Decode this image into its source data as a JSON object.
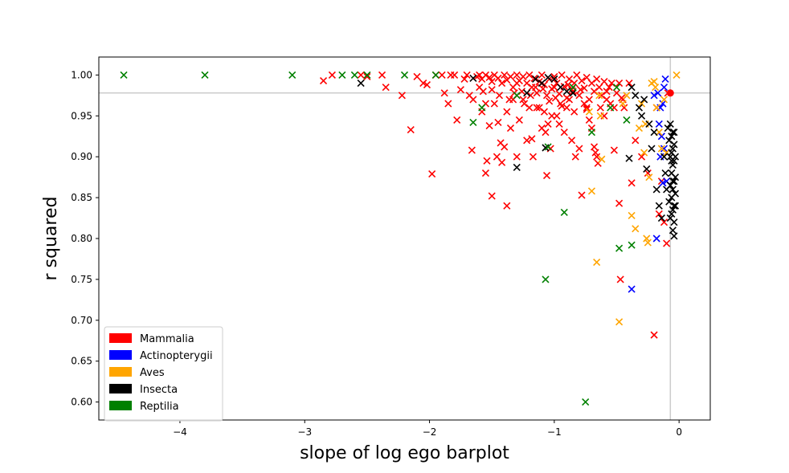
{
  "chart_data": {
    "type": "scatter",
    "xlabel": "slope of log ego barplot",
    "ylabel": "r squared",
    "xlim": [
      -4.65,
      0.25
    ],
    "ylim": [
      0.578,
      1.022
    ],
    "xticks": [
      -4,
      -3,
      -2,
      -1,
      0
    ],
    "xtick_labels": [
      "−4",
      "−3",
      "−2",
      "−1",
      "0"
    ],
    "yticks": [
      0.6,
      0.65,
      0.7,
      0.75,
      0.8,
      0.85,
      0.9,
      0.95,
      1.0
    ],
    "ytick_labels": [
      "0.60",
      "0.65",
      "0.70",
      "0.75",
      "0.80",
      "0.85",
      "0.90",
      "0.95",
      "1.00"
    ],
    "grid": false,
    "marker": "x",
    "reference_lines": {
      "vertical_x": -0.07,
      "horizontal_y": 0.978
    },
    "highlight_point": {
      "x": -0.07,
      "y": 0.978,
      "color": "#ff0000"
    },
    "legend": {
      "location": "lower-left"
    },
    "series": [
      {
        "name": "Mammalia",
        "color": "#ff0000",
        "points": [
          [
            -2.85,
            0.993
          ],
          [
            -2.78,
            1.0
          ],
          [
            -2.55,
            1.0
          ],
          [
            -2.5,
            0.998
          ],
          [
            -2.38,
            1.0
          ],
          [
            -2.35,
            0.985
          ],
          [
            -2.22,
            0.975
          ],
          [
            -2.15,
            0.933
          ],
          [
            -2.1,
            0.998
          ],
          [
            -2.05,
            0.99
          ],
          [
            -2.02,
            0.988
          ],
          [
            -1.98,
            0.879
          ],
          [
            -1.95,
            1.0
          ],
          [
            -1.9,
            1.0
          ],
          [
            -1.88,
            0.978
          ],
          [
            -1.85,
            0.965
          ],
          [
            -1.83,
            1.0
          ],
          [
            -1.8,
            1.0
          ],
          [
            -1.78,
            0.945
          ],
          [
            -1.75,
            0.982
          ],
          [
            -1.72,
            0.995
          ],
          [
            -1.7,
            1.0
          ],
          [
            -1.68,
            0.975
          ],
          [
            -1.66,
            0.908
          ],
          [
            -1.65,
            0.97
          ],
          [
            -1.6,
            1.0
          ],
          [
            -1.58,
            0.955
          ],
          [
            -1.57,
            0.98
          ],
          [
            -1.55,
            0.965
          ],
          [
            -1.55,
            0.88
          ],
          [
            -1.54,
            0.895
          ],
          [
            -1.52,
            0.938
          ],
          [
            -1.5,
            0.852
          ],
          [
            -1.48,
            0.965
          ],
          [
            -1.46,
            0.9
          ],
          [
            -1.45,
            0.942
          ],
          [
            -1.43,
            0.917
          ],
          [
            -1.42,
            0.893
          ],
          [
            -1.4,
            0.912
          ],
          [
            -1.38,
            0.84
          ],
          [
            -1.38,
            0.955
          ],
          [
            -1.35,
            0.935
          ],
          [
            -1.33,
            0.97
          ],
          [
            -1.3,
            0.99
          ],
          [
            -1.3,
            0.9
          ],
          [
            -1.28,
            0.945
          ],
          [
            -1.25,
            0.97
          ],
          [
            -1.22,
            0.92
          ],
          [
            -1.2,
            0.96
          ],
          [
            -1.18,
            0.922
          ],
          [
            -1.17,
            0.9
          ],
          [
            -1.15,
            0.985
          ],
          [
            -1.12,
            0.96
          ],
          [
            -1.1,
            0.935
          ],
          [
            -1.08,
            0.955
          ],
          [
            -1.07,
            0.93
          ],
          [
            -1.06,
            0.877
          ],
          [
            -1.05,
            0.94
          ],
          [
            -1.03,
            0.91
          ],
          [
            -1.02,
            0.95
          ],
          [
            -1.0,
            0.985
          ],
          [
            -0.98,
            0.95
          ],
          [
            -0.96,
            0.94
          ],
          [
            -0.95,
            0.965
          ],
          [
            -0.92,
            0.93
          ],
          [
            -0.9,
            0.96
          ],
          [
            -0.88,
            0.97
          ],
          [
            -0.86,
            0.92
          ],
          [
            -0.85,
            0.98
          ],
          [
            -0.83,
            0.9
          ],
          [
            -0.8,
            0.91
          ],
          [
            -0.78,
            0.853
          ],
          [
            -0.76,
            0.965
          ],
          [
            -0.74,
            0.96
          ],
          [
            -0.72,
            0.945
          ],
          [
            -0.7,
            0.935
          ],
          [
            -0.68,
            0.912
          ],
          [
            -0.67,
            0.905
          ],
          [
            -0.66,
            0.9
          ],
          [
            -0.65,
            0.892
          ],
          [
            -0.63,
            0.96
          ],
          [
            -0.6,
            0.95
          ],
          [
            -0.58,
            0.98
          ],
          [
            -0.55,
            0.965
          ],
          [
            -0.52,
            0.908
          ],
          [
            -0.48,
            0.843
          ],
          [
            -0.47,
            0.75
          ],
          [
            -0.45,
            0.97
          ],
          [
            -0.4,
            0.99
          ],
          [
            -0.38,
            0.868
          ],
          [
            -0.35,
            0.92
          ],
          [
            -0.3,
            0.9
          ],
          [
            -0.25,
            0.88
          ],
          [
            -0.2,
            0.682
          ],
          [
            -0.18,
            0.96
          ],
          [
            -0.16,
            0.83
          ],
          [
            -0.14,
            0.87
          ],
          [
            -0.12,
            0.82
          ],
          [
            -0.1,
            0.794
          ],
          [
            -0.09,
            0.978
          ],
          [
            -1.62,
            0.998
          ],
          [
            -1.58,
            0.995
          ],
          [
            -1.55,
            1.0
          ],
          [
            -1.52,
            0.997
          ],
          [
            -1.5,
            0.992
          ],
          [
            -1.48,
            1.0
          ],
          [
            -1.45,
            0.996
          ],
          [
            -1.42,
            0.99
          ],
          [
            -1.4,
            1.0
          ],
          [
            -1.38,
            0.994
          ],
          [
            -1.35,
            0.998
          ],
          [
            -1.33,
            0.985
          ],
          [
            -1.3,
            1.0
          ],
          [
            -1.28,
            0.993
          ],
          [
            -1.26,
            0.98
          ],
          [
            -1.25,
            0.998
          ],
          [
            -1.22,
            0.99
          ],
          [
            -1.2,
            1.0
          ],
          [
            -1.18,
            0.985
          ],
          [
            -1.16,
            0.996
          ],
          [
            -1.14,
            0.978
          ],
          [
            -1.12,
            0.992
          ],
          [
            -1.1,
            1.0
          ],
          [
            -1.08,
            0.988
          ],
          [
            -1.06,
            0.975
          ],
          [
            -1.04,
            0.995
          ],
          [
            -1.02,
            0.983
          ],
          [
            -1.0,
            0.998
          ],
          [
            -0.98,
            0.99
          ],
          [
            -0.96,
            0.977
          ],
          [
            -0.94,
            1.0
          ],
          [
            -0.92,
            0.986
          ],
          [
            -0.9,
            0.972
          ],
          [
            -0.88,
            0.995
          ],
          [
            -0.86,
            0.982
          ],
          [
            -0.84,
            0.99
          ],
          [
            -0.82,
            1.0
          ],
          [
            -0.8,
            0.975
          ],
          [
            -0.78,
            0.993
          ],
          [
            -0.76,
            0.984
          ],
          [
            -0.74,
            0.997
          ],
          [
            -0.72,
            0.97
          ],
          [
            -0.7,
            0.99
          ],
          [
            -0.68,
            0.98
          ],
          [
            -0.66,
            0.995
          ],
          [
            -0.64,
            0.985
          ],
          [
            -0.62,
            0.975
          ],
          [
            -0.6,
            0.992
          ],
          [
            -0.58,
            0.97
          ],
          [
            -0.56,
            0.985
          ],
          [
            -0.54,
            0.99
          ],
          [
            -0.52,
            0.96
          ],
          [
            -0.5,
            0.978
          ],
          [
            -0.48,
            0.99
          ],
          [
            -0.46,
            0.972
          ],
          [
            -0.44,
            0.96
          ],
          [
            -1.44,
            0.975
          ],
          [
            -1.36,
            0.97
          ],
          [
            -1.24,
            0.965
          ],
          [
            -1.14,
            0.96
          ],
          [
            -1.04,
            0.968
          ],
          [
            -0.94,
            0.962
          ],
          [
            -0.84,
            0.955
          ],
          [
            -0.74,
            0.958
          ],
          [
            -1.6,
            0.985
          ],
          [
            -1.5,
            0.982
          ],
          [
            -1.32,
            0.978
          ],
          [
            -1.19,
            0.975
          ],
          [
            -1.09,
            0.983
          ],
          [
            -0.99,
            0.972
          ],
          [
            -0.89,
            0.988
          ],
          [
            -0.79,
            0.982
          ]
        ]
      },
      {
        "name": "Actinopterygii",
        "color": "#0000ff",
        "points": [
          [
            -0.38,
            0.738
          ],
          [
            -0.18,
            0.8
          ],
          [
            -0.2,
            0.975
          ],
          [
            -0.17,
            0.978
          ],
          [
            -0.16,
            0.94
          ],
          [
            -0.15,
            0.96
          ],
          [
            -0.14,
            0.925
          ],
          [
            -0.13,
            0.965
          ],
          [
            -0.12,
            0.985
          ],
          [
            -0.11,
            0.995
          ],
          [
            -0.1,
            0.87
          ],
          [
            -0.12,
            0.91
          ],
          [
            -0.13,
            0.868
          ],
          [
            -0.15,
            0.9
          ]
        ]
      },
      {
        "name": "Aves",
        "color": "#ffa500",
        "points": [
          [
            -0.72,
            0.955
          ],
          [
            -0.7,
            0.858
          ],
          [
            -0.66,
            0.771
          ],
          [
            -0.63,
            0.95
          ],
          [
            -0.62,
            0.897
          ],
          [
            -0.48,
            0.698
          ],
          [
            -0.45,
            0.965
          ],
          [
            -0.42,
            0.975
          ],
          [
            -0.38,
            0.828
          ],
          [
            -0.35,
            0.812
          ],
          [
            -0.32,
            0.935
          ],
          [
            -0.3,
            0.965
          ],
          [
            -0.28,
            0.905
          ],
          [
            -0.27,
            0.94
          ],
          [
            -0.26,
            0.8
          ],
          [
            -0.25,
            0.795
          ],
          [
            -0.24,
            0.875
          ],
          [
            -0.22,
            0.99
          ],
          [
            -0.2,
            0.992
          ],
          [
            -0.19,
            0.985
          ],
          [
            -0.18,
            0.96
          ],
          [
            -0.16,
            0.93
          ],
          [
            -0.14,
            0.91
          ],
          [
            -0.12,
            0.97
          ],
          [
            -0.1,
            0.905
          ],
          [
            -0.02,
            1.0
          ],
          [
            -0.64,
            0.975
          ]
        ]
      },
      {
        "name": "Insecta",
        "color": "#000000",
        "points": [
          [
            -2.55,
            0.99
          ],
          [
            -1.65,
            0.996
          ],
          [
            -1.3,
            0.887
          ],
          [
            -1.22,
            0.978
          ],
          [
            -1.15,
            0.995
          ],
          [
            -1.1,
            0.99
          ],
          [
            -1.07,
            0.911
          ],
          [
            -1.05,
            0.997
          ],
          [
            -1.0,
            0.995
          ],
          [
            -0.95,
            0.985
          ],
          [
            -0.9,
            0.98
          ],
          [
            -0.85,
            0.978
          ],
          [
            -0.4,
            0.898
          ],
          [
            -0.38,
            0.985
          ],
          [
            -0.35,
            0.975
          ],
          [
            -0.32,
            0.96
          ],
          [
            -0.3,
            0.95
          ],
          [
            -0.28,
            0.97
          ],
          [
            -0.26,
            0.885
          ],
          [
            -0.24,
            0.94
          ],
          [
            -0.22,
            0.91
          ],
          [
            -0.2,
            0.93
          ],
          [
            -0.18,
            0.86
          ],
          [
            -0.16,
            0.84
          ],
          [
            -0.14,
            0.825
          ],
          [
            -0.12,
            0.9
          ],
          [
            -0.11,
            0.88
          ],
          [
            -0.1,
            0.86
          ],
          [
            -0.09,
            0.935
          ],
          [
            -0.08,
            0.92
          ],
          [
            -0.07,
            0.9
          ],
          [
            -0.06,
            0.88
          ],
          [
            -0.05,
            0.86
          ],
          [
            -0.04,
            0.84
          ],
          [
            -0.06,
            0.83
          ],
          [
            -0.05,
            0.81
          ],
          [
            -0.04,
            0.803
          ],
          [
            -0.07,
            0.94
          ],
          [
            -0.06,
            0.925
          ],
          [
            -0.05,
            0.91
          ],
          [
            -0.04,
            0.895
          ],
          [
            -0.03,
            0.875
          ],
          [
            -0.07,
            0.865
          ],
          [
            -0.06,
            0.85
          ],
          [
            -0.05,
            0.835
          ],
          [
            -0.04,
            0.87
          ],
          [
            -0.03,
            0.855
          ],
          [
            -0.05,
            0.89
          ],
          [
            -0.04,
            0.915
          ],
          [
            -0.06,
            0.905
          ],
          [
            -0.05,
            0.93
          ],
          [
            -0.08,
            0.845
          ],
          [
            -0.07,
            0.825
          ],
          [
            -0.03,
            0.9
          ],
          [
            -0.04,
            0.93
          ],
          [
            -0.05,
            0.87
          ],
          [
            -0.06,
            0.895
          ],
          [
            -0.03,
            0.84
          ],
          [
            -0.04,
            0.82
          ]
        ]
      },
      {
        "name": "Reptilia",
        "color": "#008000",
        "points": [
          [
            -4.45,
            1.0
          ],
          [
            -3.8,
            1.0
          ],
          [
            -3.1,
            1.0
          ],
          [
            -2.7,
            1.0
          ],
          [
            -2.6,
            1.0
          ],
          [
            -2.5,
            1.0
          ],
          [
            -2.2,
            1.0
          ],
          [
            -1.95,
            1.0
          ],
          [
            -1.65,
            0.942
          ],
          [
            -1.58,
            0.96
          ],
          [
            -1.3,
            0.975
          ],
          [
            -1.07,
            0.75
          ],
          [
            -1.05,
            0.912
          ],
          [
            -0.92,
            0.832
          ],
          [
            -0.85,
            0.985
          ],
          [
            -0.75,
            0.6
          ],
          [
            -0.7,
            0.93
          ],
          [
            -0.55,
            0.96
          ],
          [
            -0.5,
            0.985
          ],
          [
            -0.48,
            0.788
          ],
          [
            -0.42,
            0.945
          ],
          [
            -0.38,
            0.792
          ]
        ]
      }
    ]
  }
}
